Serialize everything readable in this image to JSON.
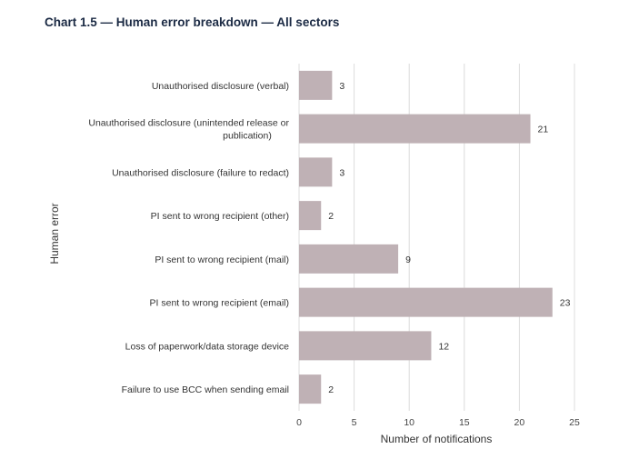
{
  "title": "Chart 1.5 — Human error breakdown — All sectors",
  "chart_data": {
    "type": "bar",
    "orientation": "horizontal",
    "title": "Chart 1.5 — Human error breakdown — All sectors",
    "xlabel": "Number of notifications",
    "ylabel": "Human error",
    "xlim": [
      0,
      25
    ],
    "xticks": [
      0,
      5,
      10,
      15,
      20,
      25
    ],
    "grid": "vertical",
    "bar_color": "#bfb1b5",
    "categories": [
      [
        "Unauthorised disclosure (verbal)"
      ],
      [
        "Unauthorised disclosure (unintended release or",
        "publication)"
      ],
      [
        "Unauthorised disclosure (failure to redact)"
      ],
      [
        "PI sent to wrong recipient (other)"
      ],
      [
        "PI sent to wrong recipient (mail)"
      ],
      [
        "PI sent to wrong recipient (email)"
      ],
      [
        "Loss of paperwork/data storage device"
      ],
      [
        "Failure to use BCC when sending email"
      ]
    ],
    "values": [
      3,
      21,
      3,
      2,
      9,
      23,
      12,
      2
    ]
  }
}
